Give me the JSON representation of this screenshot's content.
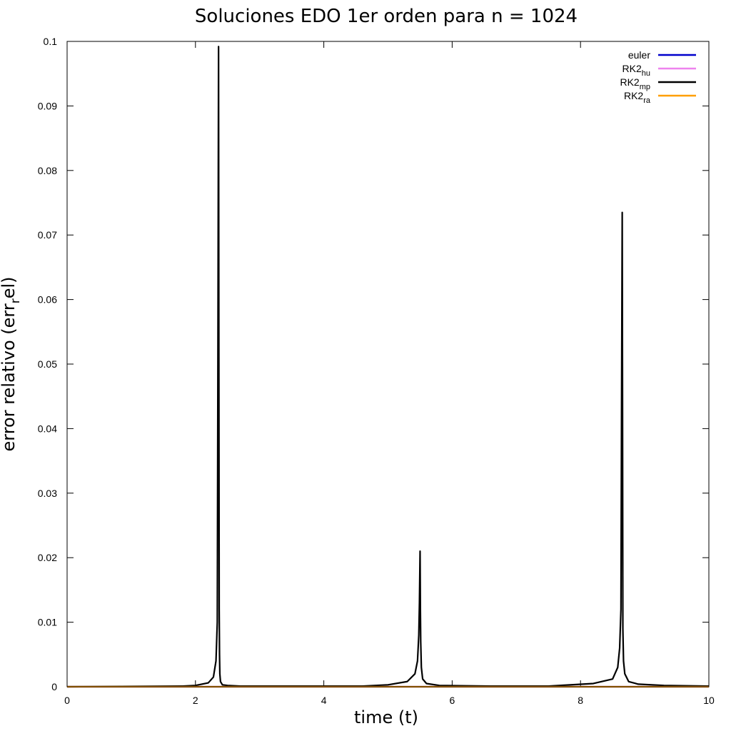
{
  "chart_data": {
    "type": "line",
    "title": "Soluciones EDO 1er orden para n = 1024",
    "xlabel": "time (t)",
    "ylabel_main": "error relativo (err",
    "ylabel_sub": "r",
    "ylabel_tail": "el)",
    "xlim": [
      0,
      10
    ],
    "ylim": [
      0,
      0.1
    ],
    "xticks": [
      "0",
      "2",
      "4",
      "6",
      "8",
      "10"
    ],
    "yticks": [
      "0",
      "0.01",
      "0.02",
      "0.03",
      "0.04",
      "0.05",
      "0.06",
      "0.07",
      "0.08",
      "0.09",
      "0.1"
    ],
    "grid": false,
    "legend_position": "top-right",
    "series": [
      {
        "name": "euler",
        "sub": "",
        "color": "#0000cc",
        "x": [
          0,
          10
        ],
        "y": [
          0,
          0
        ]
      },
      {
        "name": "RK2",
        "sub": "hu",
        "color": "#ee82ee",
        "x": [
          0,
          10
        ],
        "y": [
          0,
          0
        ]
      },
      {
        "name": "RK2",
        "sub": "mp",
        "color": "#000000",
        "x": [
          0,
          1.8,
          2.0,
          2.2,
          2.28,
          2.32,
          2.34,
          2.35,
          2.36,
          2.365,
          2.37,
          2.375,
          2.38,
          2.39,
          2.42,
          2.5,
          2.7,
          3.1,
          4.6,
          5.0,
          5.3,
          5.42,
          5.46,
          5.48,
          5.49,
          5.5,
          5.505,
          5.51,
          5.52,
          5.54,
          5.6,
          5.8,
          6.6,
          7.5,
          8.2,
          8.5,
          8.58,
          8.61,
          8.63,
          8.64,
          8.65,
          8.655,
          8.66,
          8.67,
          8.69,
          8.75,
          8.9,
          9.3,
          10
        ],
        "y": [
          0,
          0.0001,
          0.0002,
          0.0006,
          0.0015,
          0.004,
          0.01,
          0.051,
          0.0992,
          0.051,
          0.012,
          0.005,
          0.002,
          0.0008,
          0.0003,
          0.0002,
          0.0001,
          0.0001,
          0.0001,
          0.0003,
          0.0008,
          0.002,
          0.004,
          0.008,
          0.013,
          0.021,
          0.012,
          0.007,
          0.003,
          0.0012,
          0.0005,
          0.0002,
          0.0001,
          0.0001,
          0.0005,
          0.0012,
          0.003,
          0.006,
          0.012,
          0.045,
          0.0735,
          0.042,
          0.009,
          0.004,
          0.002,
          0.0008,
          0.0004,
          0.0002,
          0.0001
        ]
      },
      {
        "name": "RK2",
        "sub": "ra",
        "color": "#ff9f00",
        "x": [
          0,
          10
        ],
        "y": [
          0,
          0
        ]
      }
    ]
  }
}
